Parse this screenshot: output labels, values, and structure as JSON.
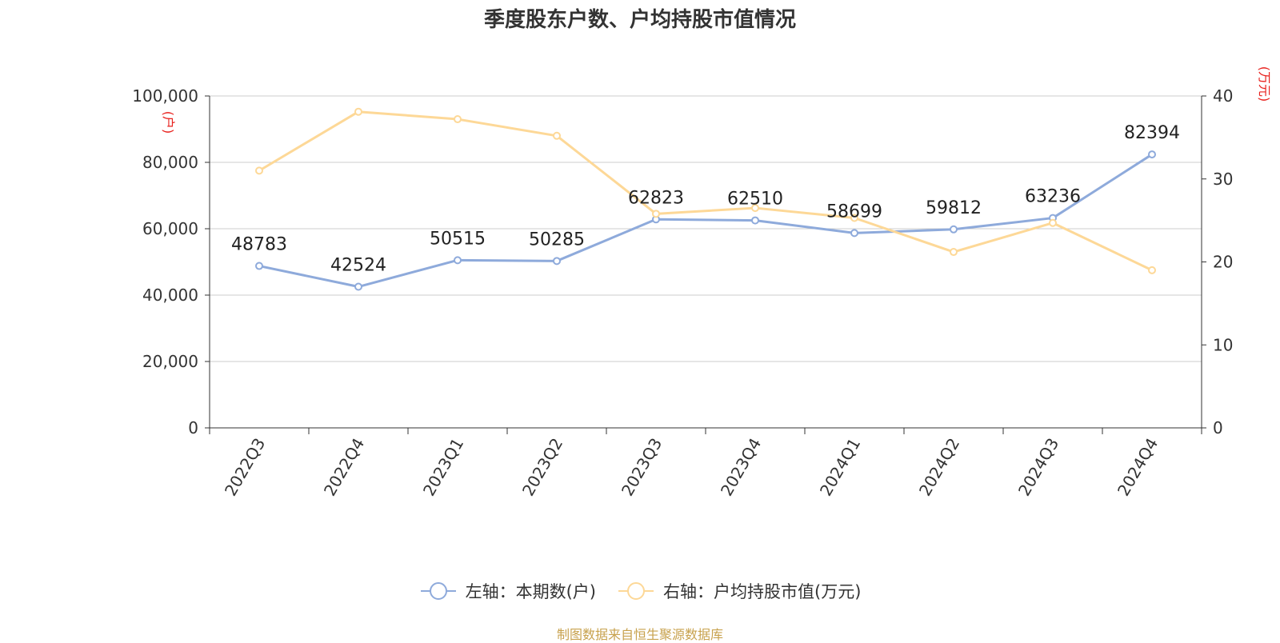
{
  "chart_data": {
    "type": "line",
    "title": "季度股东户数、户均持股市值情况",
    "categories": [
      "2022Q3",
      "2022Q4",
      "2023Q1",
      "2023Q2",
      "2023Q3",
      "2023Q4",
      "2024Q1",
      "2024Q2",
      "2024Q3",
      "2024Q4"
    ],
    "series": [
      {
        "name": "左轴：本期数(户)",
        "axis": "left",
        "color": "#8eaadb",
        "values": [
          48783,
          42524,
          50515,
          50285,
          62823,
          62510,
          58699,
          59812,
          63236,
          82394
        ],
        "labels": [
          "48783",
          "42524",
          "50515",
          "50285",
          "62823",
          "62510",
          "58699",
          "59812",
          "63236",
          "82394"
        ]
      },
      {
        "name": "右轴：户均持股市值(万元)",
        "axis": "right",
        "color": "#fdd897",
        "values": [
          31.0,
          38.1,
          37.2,
          35.2,
          25.8,
          26.5,
          25.3,
          21.2,
          24.7,
          19.0
        ]
      }
    ],
    "y_left": {
      "label": "(户)",
      "lim": [
        0,
        100000
      ],
      "ticks": [
        "0",
        "20,000",
        "40,000",
        "60,000",
        "80,000",
        "100,000"
      ]
    },
    "y_right": {
      "label": "(万元)",
      "lim": [
        0,
        40
      ],
      "ticks": [
        "0",
        "10",
        "20",
        "30",
        "40"
      ]
    },
    "grid": true,
    "legend_position": "bottom",
    "source": "制图数据来自恒生聚源数据库",
    "colors": {
      "axis_label": "#e8211d",
      "grid": "#cccccc",
      "text": "#333333",
      "source": "#c8a24e"
    }
  }
}
